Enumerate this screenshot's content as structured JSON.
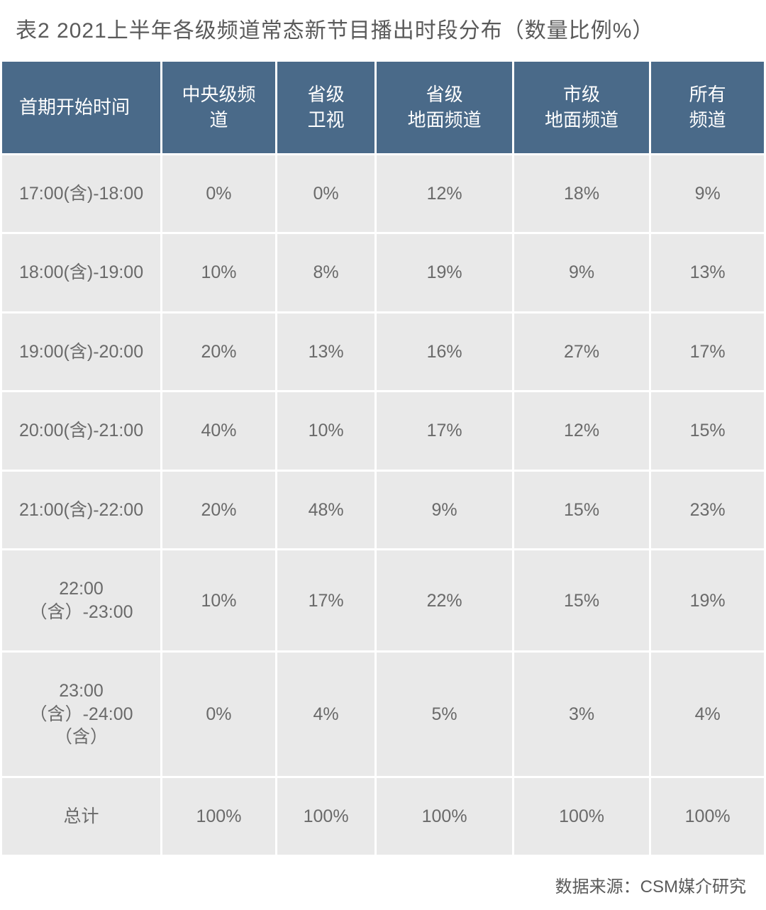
{
  "title": "表2  2021上半年各级频道常态新节目播出时段分布（数量比例%）",
  "source": "数据来源：CSM媒介研究",
  "table": {
    "type": "table",
    "header_bg_color": "#4a6a89",
    "header_text_color": "#ffffff",
    "cell_bg_color": "#e9e9e9",
    "cell_text_color": "#6a6a6a",
    "title_color": "#5a5a5a",
    "title_fontsize": 30,
    "header_fontsize": 26,
    "cell_fontsize": 25,
    "source_fontsize": 24,
    "border_spacing": 3,
    "column_widths_pct": [
      21,
      15,
      13,
      18,
      18,
      15
    ],
    "columns": [
      "首期开始时间",
      "中央级频道",
      "省级卫视",
      "省级地面频道",
      "市级地面频道",
      "所有频道"
    ],
    "columns_display": [
      "首期开始时间",
      "中央级频\n道",
      "省级\n卫视",
      "省级\n地面频道",
      "市级\n地面频道",
      "所有\n频道"
    ],
    "rows": [
      [
        "17:00(含)-18:00",
        "0%",
        "0%",
        "12%",
        "18%",
        "9%"
      ],
      [
        "18:00(含)-19:00",
        "10%",
        "8%",
        "19%",
        "9%",
        "13%"
      ],
      [
        "19:00(含)-20:00",
        "20%",
        "13%",
        "16%",
        "27%",
        "17%"
      ],
      [
        "20:00(含)-21:00",
        "40%",
        "10%",
        "17%",
        "12%",
        "15%"
      ],
      [
        "21:00(含)-22:00",
        "20%",
        "48%",
        "9%",
        "15%",
        "23%"
      ],
      [
        "22:00（含）-23:00",
        "10%",
        "17%",
        "22%",
        "15%",
        "19%"
      ],
      [
        "23:00（含）-24:00（含）",
        "0%",
        "4%",
        "5%",
        "3%",
        "4%"
      ],
      [
        "总计",
        "100%",
        "100%",
        "100%",
        "100%",
        "100%"
      ]
    ]
  }
}
